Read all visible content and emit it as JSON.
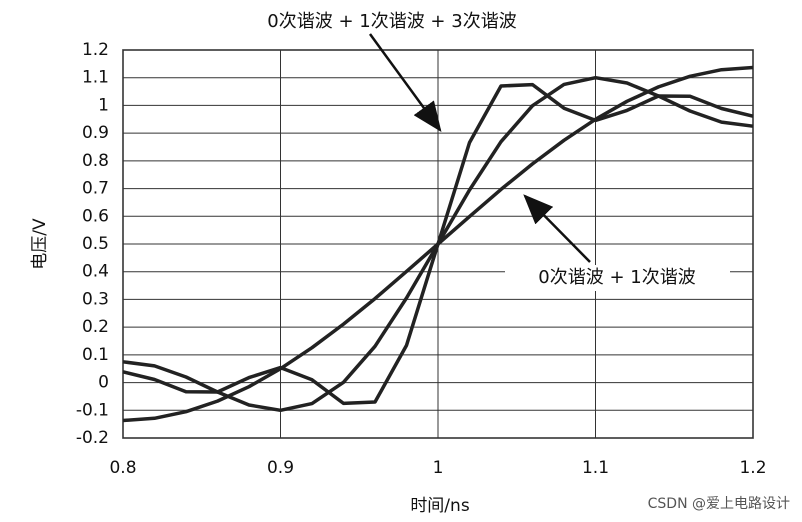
{
  "chart_data": {
    "type": "line",
    "xlabel": "时间/ns",
    "ylabel": "电压/V",
    "x": [
      0.8,
      0.82,
      0.84,
      0.86,
      0.88,
      0.9,
      0.92,
      0.94,
      0.96,
      0.98,
      1.0,
      1.02,
      1.04,
      1.06,
      1.08,
      1.1,
      1.12,
      1.14,
      1.16,
      1.18,
      1.2
    ],
    "series": [
      {
        "color": "#222222",
        "values": [
          -0.137,
          -0.129,
          -0.105,
          -0.067,
          -0.015,
          0.05,
          0.126,
          0.211,
          0.303,
          0.401,
          0.5,
          0.599,
          0.697,
          0.789,
          0.874,
          0.95,
          1.015,
          1.067,
          1.105,
          1.129,
          1.137
        ]
      },
      {
        "color": "#222222",
        "values": [
          0.075,
          0.06,
          0.02,
          -0.034,
          -0.081,
          -0.1,
          -0.076,
          0.001,
          0.131,
          0.305,
          0.5,
          0.695,
          0.869,
          0.999,
          1.076,
          1.1,
          1.081,
          1.034,
          0.98,
          0.94,
          0.925
        ]
      },
      {
        "color": "#222222",
        "values": [
          0.039,
          0.011,
          -0.033,
          -0.034,
          0.018,
          0.054,
          0.01,
          -0.075,
          -0.07,
          0.134,
          0.5,
          0.866,
          1.07,
          1.075,
          0.99,
          0.946,
          0.982,
          1.034,
          1.033,
          0.989,
          0.961
        ]
      }
    ],
    "xlim": [
      0.8,
      1.2
    ],
    "xticks": [
      0.8,
      0.9,
      1,
      1.1,
      1.2
    ],
    "ylim": [
      -0.2,
      1.2
    ],
    "yticks": [
      -0.2,
      -0.1,
      0,
      0.1,
      0.2,
      0.3,
      0.4,
      0.5,
      0.6,
      0.7,
      0.8,
      0.9,
      1,
      1.1,
      1.2
    ],
    "grid": true,
    "annotations": [
      {
        "text": "0次谐波 + 1次谐波 + 3次谐波"
      },
      {
        "text": "0次谐波 + 1次谐波"
      }
    ],
    "watermark": "CSDN @爱上电路设计"
  }
}
